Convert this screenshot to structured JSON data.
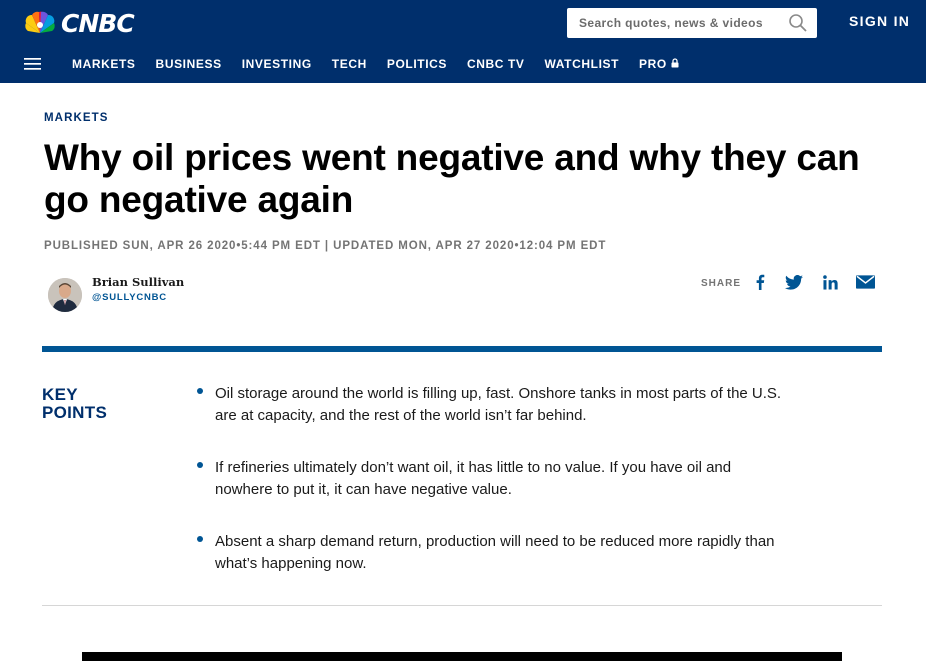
{
  "header": {
    "logo_text": "CNBC",
    "search_placeholder": "Search quotes, news & videos",
    "sign_in": "SIGN IN"
  },
  "nav": {
    "items": [
      {
        "label": "MARKETS"
      },
      {
        "label": "BUSINESS"
      },
      {
        "label": "INVESTING"
      },
      {
        "label": "TECH"
      },
      {
        "label": "POLITICS"
      },
      {
        "label": "CNBC TV"
      },
      {
        "label": "WATCHLIST"
      },
      {
        "label": "PRO"
      }
    ]
  },
  "article": {
    "section": "MARKETS",
    "headline": "Why oil prices went negative and why they can go negative again",
    "timestamps": "PUBLISHED SUN, APR 26 2020•5:44 PM EDT | UPDATED MON, APR 27 2020•12:04 PM EDT",
    "author": {
      "name": "Brian Sullivan",
      "handle": "@SULLYCNBC"
    },
    "share_label": "SHARE",
    "share_icons": [
      "facebook-icon",
      "twitter-icon",
      "linkedin-icon",
      "email-icon"
    ]
  },
  "key_points": {
    "title_line1": "KEY",
    "title_line2": "POINTS",
    "items": [
      "Oil storage around the world is filling up, fast. Onshore tanks in most parts of the U.S. are at capacity, and the rest of the world isn’t far behind.",
      "If refineries ultimately don’t want oil, it has little to no value.  If you have oil and nowhere to put it, it can have negative value.",
      "Absent a sharp demand return, production will need to be reduced more rapidly than what’s happening now."
    ]
  },
  "colors": {
    "header_bg": "#002F6C",
    "accent_blue": "#005594",
    "meta_gray": "#747474"
  }
}
